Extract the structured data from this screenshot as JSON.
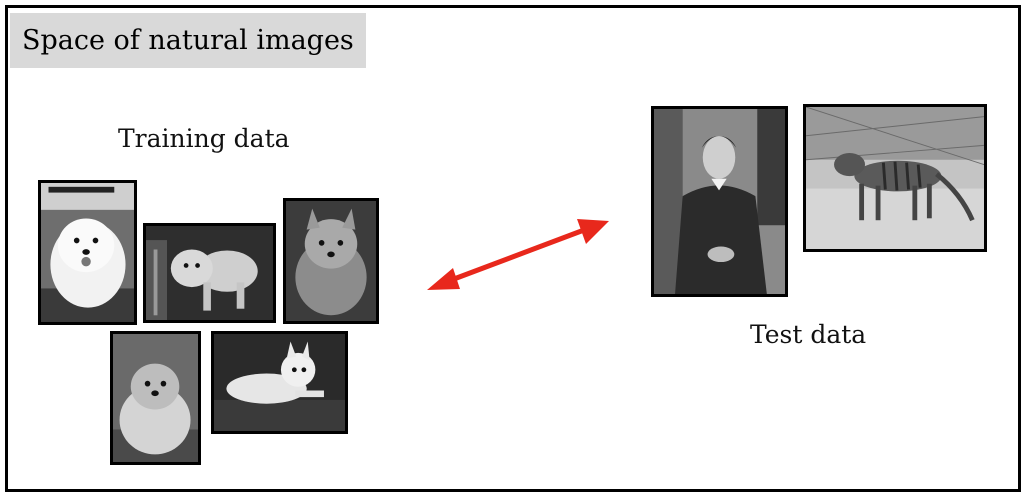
{
  "title": "Space of natural images",
  "training": {
    "label": "Training data",
    "images": [
      {
        "id": "dog-1",
        "icon": "white-maltese-dog-photo"
      },
      {
        "id": "dog-2",
        "icon": "small-terrier-dog-photo"
      },
      {
        "id": "dog-3",
        "icon": "yorkshire-terrier-dog-photo"
      },
      {
        "id": "dog-4",
        "icon": "long-haired-terrier-dog-photo"
      },
      {
        "id": "dog-5",
        "icon": "westie-dog-lying-photo"
      }
    ]
  },
  "test": {
    "label": "Test data",
    "images": [
      {
        "id": "portrait",
        "icon": "vintage-portrait-of-man-photo"
      },
      {
        "id": "thylacine",
        "icon": "striped-thylacine-photo"
      }
    ]
  },
  "colors": {
    "arrow": "#e8281c",
    "title_bg": "#d9d9d9",
    "border": "#000000"
  }
}
